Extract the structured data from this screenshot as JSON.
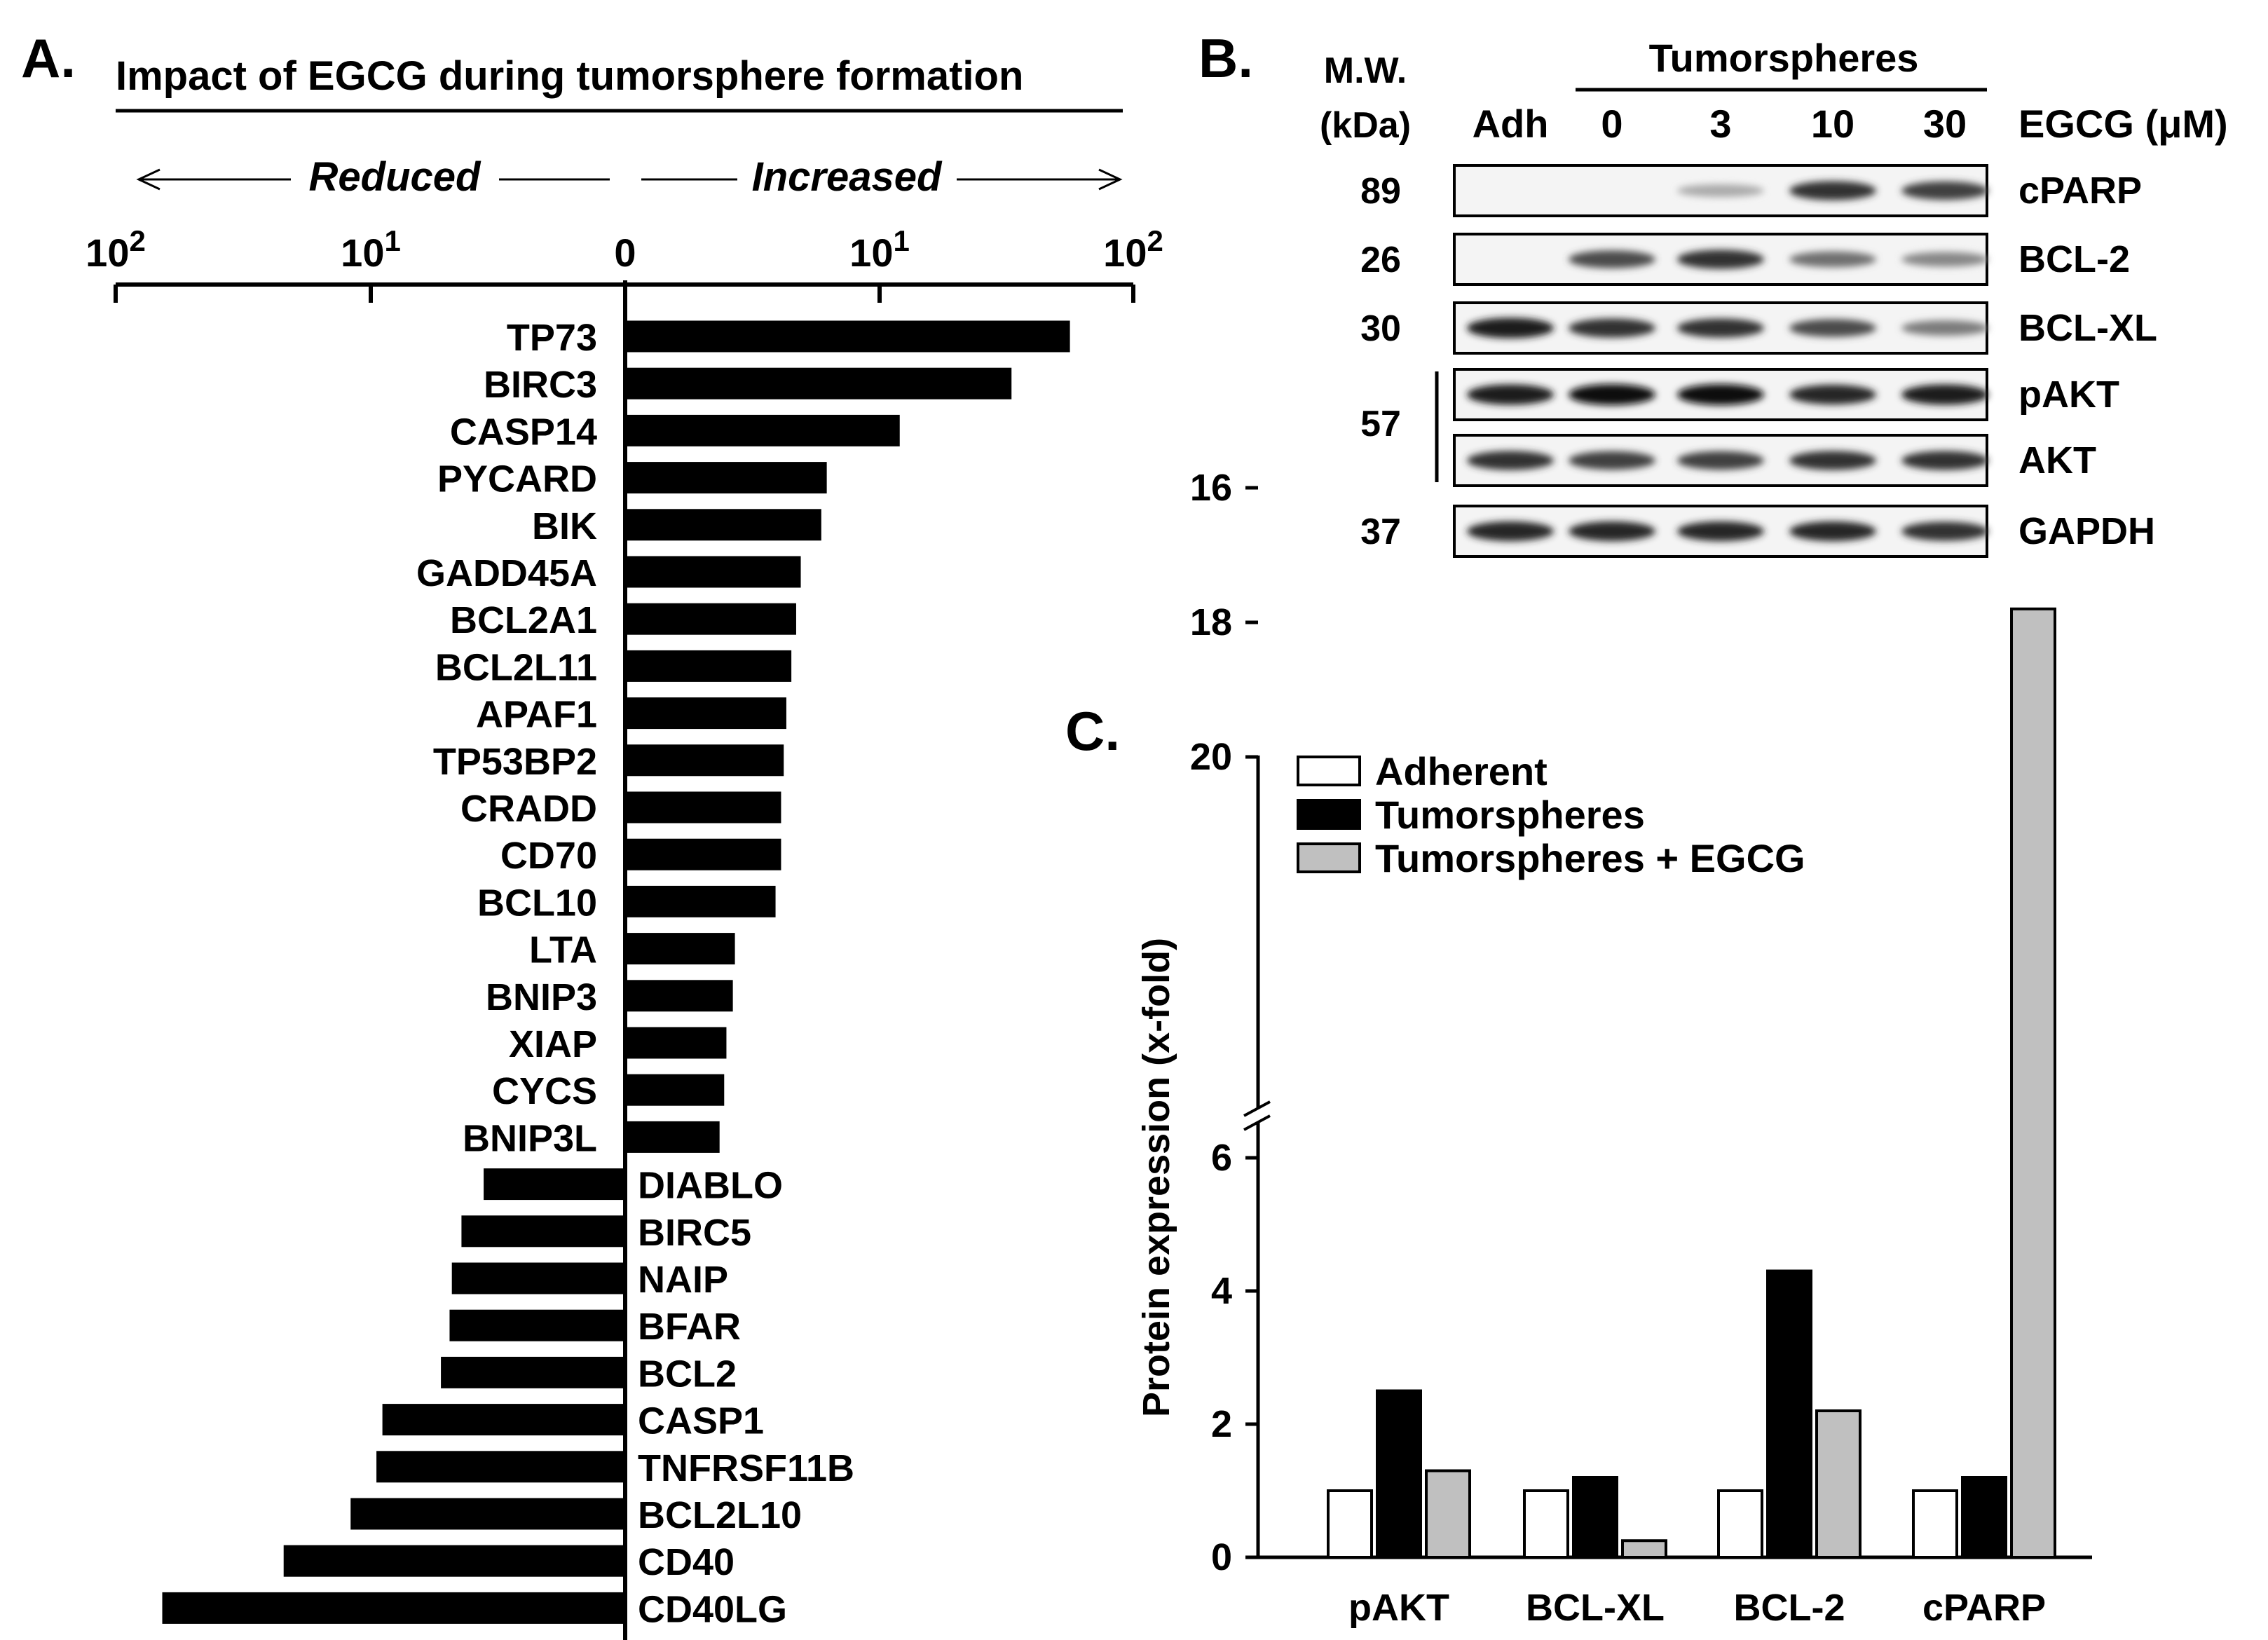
{
  "panels": {
    "a": "A.",
    "b": "B.",
    "c": "C."
  },
  "chart_data": [
    {
      "type": "bar",
      "orientation": "horizontal",
      "title": "Impact of EGCG during tumorsphere formation",
      "direction_labels": {
        "reduced": "Reduced",
        "increased": "Increased"
      },
      "scale": "log",
      "axis_ticks": [
        {
          "base": "10",
          "exp": "2"
        },
        {
          "base": "10",
          "exp": "1"
        },
        {
          "base": "0",
          "exp": ""
        },
        {
          "base": "10",
          "exp": "1"
        },
        {
          "base": "10",
          "exp": "2"
        }
      ],
      "xlim": [
        -100,
        100
      ],
      "genes": [
        {
          "name": "TP73",
          "value": 55
        },
        {
          "name": "BIRC3",
          "value": 32
        },
        {
          "name": "CASP14",
          "value": 11
        },
        {
          "name": "PYCARD",
          "value": 5.2
        },
        {
          "name": "BIK",
          "value": 4.9
        },
        {
          "name": "GADD45A",
          "value": 3.9
        },
        {
          "name": "BCL2A1",
          "value": 3.7
        },
        {
          "name": "BCL2L11",
          "value": 3.5
        },
        {
          "name": "APAF1",
          "value": 3.3
        },
        {
          "name": "TP53BP2",
          "value": 3.2
        },
        {
          "name": "CRADD",
          "value": 3.1
        },
        {
          "name": "CD70",
          "value": 3.1
        },
        {
          "name": "BCL10",
          "value": 2.9
        },
        {
          "name": "LTA",
          "value": 1.7
        },
        {
          "name": "BNIP3",
          "value": 1.65
        },
        {
          "name": "XIAP",
          "value": 1.5
        },
        {
          "name": "CYCS",
          "value": 1.45
        },
        {
          "name": "BNIP3L",
          "value": 1.35
        },
        {
          "name": "DIABLO",
          "value": -2.6
        },
        {
          "name": "BIRC5",
          "value": -3.4
        },
        {
          "name": "NAIP",
          "value": -3.8
        },
        {
          "name": "BFAR",
          "value": -3.9
        },
        {
          "name": "BCL2",
          "value": -4.3
        },
        {
          "name": "CASP1",
          "value": -8
        },
        {
          "name": "TNFRSF11B",
          "value": -8.5
        },
        {
          "name": "BCL2L10",
          "value": -11
        },
        {
          "name": "CD40",
          "value": -21
        },
        {
          "name": "CD40LG",
          "value": -65
        }
      ]
    },
    {
      "type": "bar",
      "title": "",
      "ylabel": "Protein expression (x-fold)",
      "categories": [
        "pAKT",
        "BCL-XL",
        "BCL-2",
        "cPARP"
      ],
      "series": [
        {
          "name": "Adherent",
          "color": "#ffffff",
          "values": [
            1.0,
            1.0,
            1.0,
            1.0
          ]
        },
        {
          "name": "Tumorspheres",
          "color": "#000000",
          "values": [
            2.5,
            1.2,
            4.3,
            1.2
          ]
        },
        {
          "name": "Tumorspheres + EGCG",
          "color": "#c0c0c0",
          "values": [
            1.3,
            0.25,
            2.2,
            17.8
          ]
        }
      ],
      "yticks": [
        "0",
        "2",
        "4",
        "6",
        "16",
        "18",
        "20"
      ],
      "ybreak": [
        6.2,
        15.0
      ],
      "ylim": [
        0,
        20
      ]
    }
  ],
  "western_blot": {
    "mw_header": [
      "M.W.",
      "(kDa)"
    ],
    "group_label": "Tumorspheres",
    "lanes": [
      "Adh",
      "0",
      "3",
      "10",
      "30"
    ],
    "treatment_label": "EGCG (μM)",
    "rows": [
      {
        "mw": "89",
        "protein": "cPARP"
      },
      {
        "mw": "26",
        "protein": "BCL-2"
      },
      {
        "mw": "30",
        "protein": "BCL-XL"
      },
      {
        "mw": "",
        "protein": "pAKT"
      },
      {
        "mw": "",
        "protein": "AKT"
      },
      {
        "mw": "37",
        "protein": "GAPDH"
      }
    ],
    "shared_mw": "57"
  }
}
